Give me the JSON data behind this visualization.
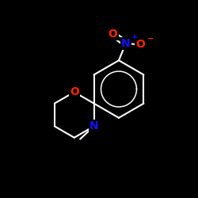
{
  "background_color": "#000000",
  "bond_color": "#ffffff",
  "atom_colors": {
    "O_ring": "#ff2200",
    "N": "#1010ff",
    "NO2_N": "#1010ff",
    "NO2_O": "#ff2200"
  },
  "bond_lw": 1.5,
  "fig_width": 2.5,
  "fig_height": 2.5,
  "dpi": 100,
  "xlim": [
    0.0,
    1.0
  ],
  "ylim": [
    0.0,
    1.0
  ]
}
